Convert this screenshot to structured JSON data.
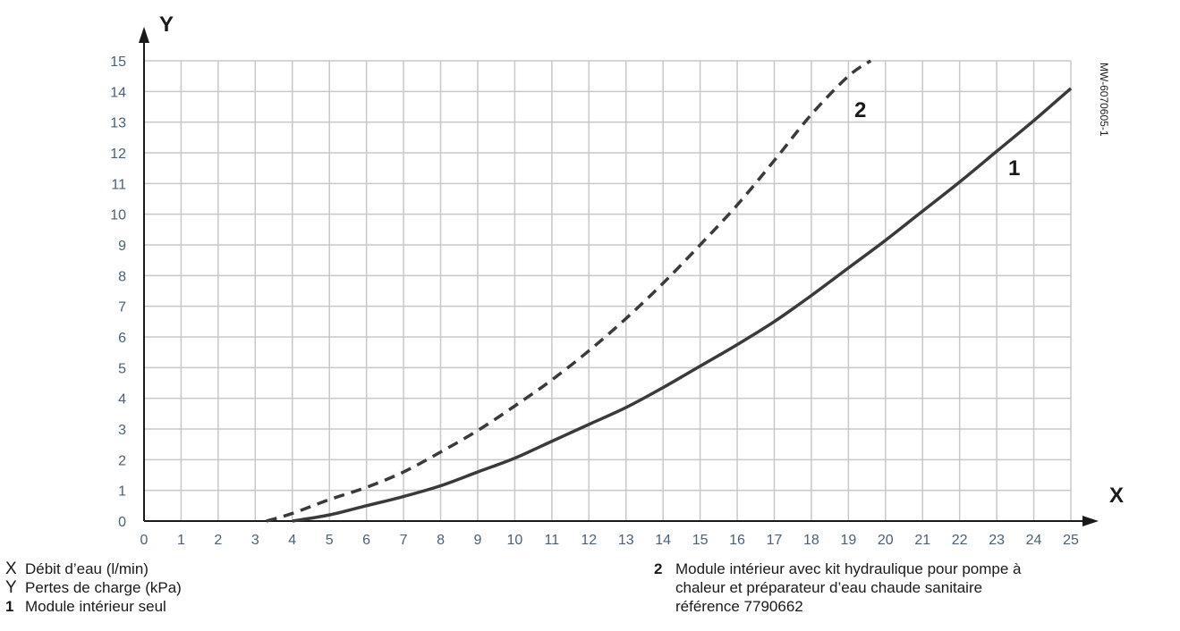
{
  "chart_data": {
    "type": "line",
    "x_axis_letter": "X",
    "y_axis_letter": "Y",
    "xlim": [
      0,
      25
    ],
    "ylim": [
      0,
      15
    ],
    "x_ticks": [
      0,
      1,
      2,
      3,
      4,
      5,
      6,
      7,
      8,
      9,
      10,
      11,
      12,
      13,
      14,
      15,
      16,
      17,
      18,
      19,
      20,
      21,
      22,
      23,
      24,
      25
    ],
    "y_ticks": [
      0,
      1,
      2,
      3,
      4,
      5,
      6,
      7,
      8,
      9,
      10,
      11,
      12,
      13,
      14,
      15
    ],
    "grid": true,
    "reference": "MW-6070605-1",
    "series": [
      {
        "name": "1",
        "style": "solid",
        "points": [
          [
            4.0,
            0
          ],
          [
            5,
            0.2
          ],
          [
            6,
            0.5
          ],
          [
            7,
            0.8
          ],
          [
            8,
            1.15
          ],
          [
            9,
            1.6
          ],
          [
            10,
            2.05
          ],
          [
            11,
            2.6
          ],
          [
            12,
            3.15
          ],
          [
            13,
            3.7
          ],
          [
            14,
            4.35
          ],
          [
            15,
            5.05
          ],
          [
            16,
            5.75
          ],
          [
            17,
            6.5
          ],
          [
            18,
            7.35
          ],
          [
            19,
            8.25
          ],
          [
            20,
            9.15
          ],
          [
            21,
            10.1
          ],
          [
            22,
            11.05
          ],
          [
            23,
            12.05
          ],
          [
            24,
            13.05
          ],
          [
            25,
            14.1
          ]
        ]
      },
      {
        "name": "2",
        "style": "dashed",
        "points": [
          [
            3.3,
            0
          ],
          [
            4,
            0.25
          ],
          [
            5,
            0.7
          ],
          [
            6,
            1.1
          ],
          [
            7,
            1.6
          ],
          [
            8,
            2.25
          ],
          [
            9,
            2.95
          ],
          [
            10,
            3.75
          ],
          [
            11,
            4.6
          ],
          [
            12,
            5.55
          ],
          [
            13,
            6.6
          ],
          [
            14,
            7.75
          ],
          [
            15,
            9.0
          ],
          [
            16,
            10.3
          ],
          [
            17,
            11.75
          ],
          [
            18,
            13.25
          ],
          [
            19,
            14.5
          ],
          [
            19.6,
            15.0
          ]
        ]
      }
    ]
  },
  "legend": {
    "left": [
      {
        "key": "X",
        "text": "Débit d’eau (l/min)"
      },
      {
        "key": "Y",
        "text": "Pertes de charge (kPa)"
      },
      {
        "key": "1",
        "text": "Module intérieur seul"
      }
    ],
    "right": [
      {
        "key": "2",
        "text": "Module intérieur avec kit hydraulique pour pompe à\nchaleur et préparateur d’eau chaude sanitaire\nréférence 7790662"
      }
    ]
  },
  "colors": {
    "grid": "#c8c8c8",
    "curve": "#3a3a3a",
    "axis": "#1a1a1a",
    "tick_text": "#4a6178"
  }
}
